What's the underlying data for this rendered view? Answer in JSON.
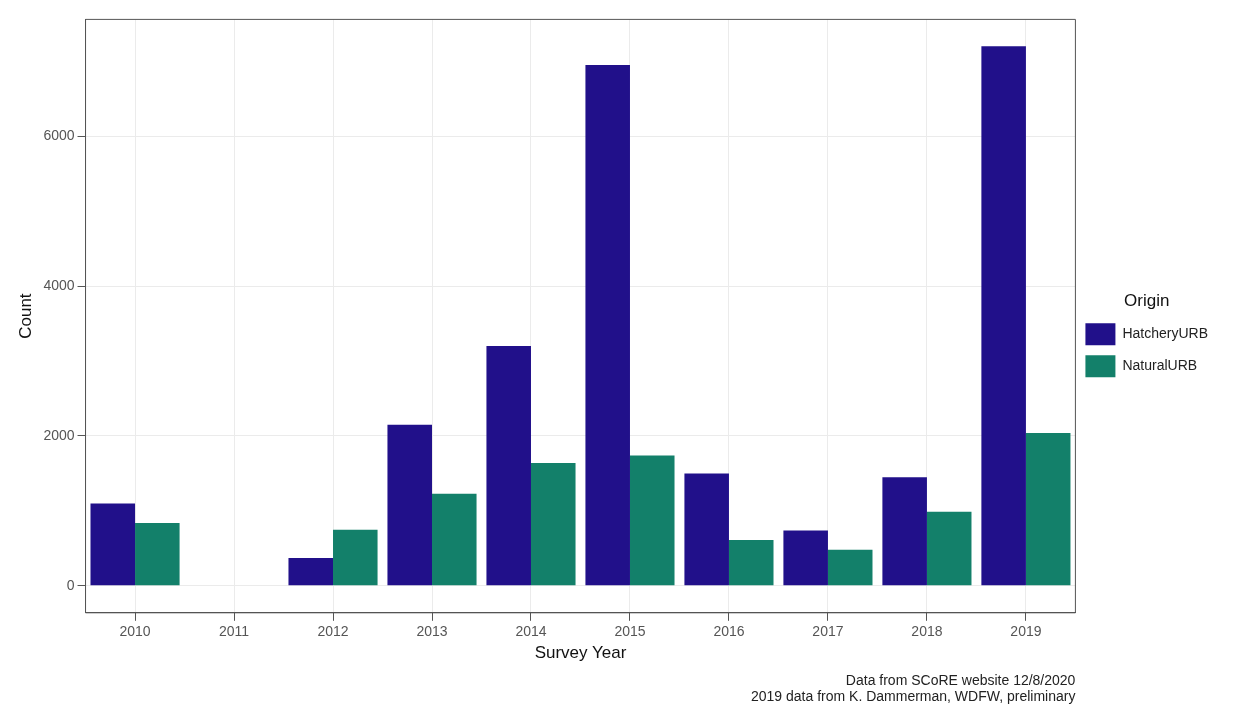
{
  "chart_data": {
    "type": "bar",
    "xlabel": "Survey Year",
    "ylabel": "Count",
    "legend_title": "Origin",
    "categories": [
      "2010",
      "2011",
      "2012",
      "2013",
      "2014",
      "2015",
      "2016",
      "2017",
      "2018",
      "2019"
    ],
    "series": [
      {
        "name": "HatcheryURB",
        "color": "#21108a",
        "values": [
          1100,
          null,
          370,
          2150,
          3200,
          6950,
          1500,
          740,
          1450,
          7200
        ]
      },
      {
        "name": "NaturalURB",
        "color": "#13806a",
        "values": [
          840,
          null,
          750,
          1230,
          1640,
          1740,
          610,
          480,
          990,
          2040
        ]
      }
    ],
    "ylim": [
      -360,
      7560
    ],
    "yticks": [
      0,
      2000,
      4000,
      6000
    ],
    "grid": true,
    "legend": "right",
    "annotations": [
      "Data from SCoRE website 12/8/2020",
      "2019 data from K. Dammerman, WDFW, preliminary"
    ]
  }
}
